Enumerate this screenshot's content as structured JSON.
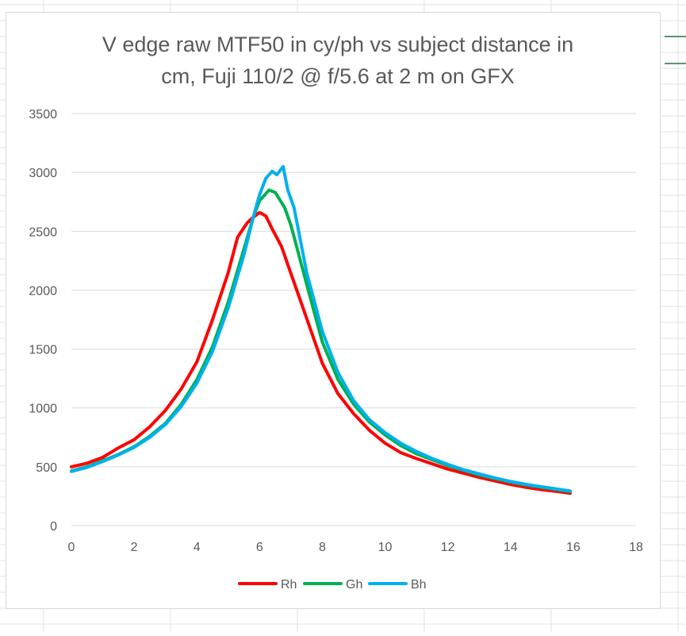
{
  "chart_data": {
    "type": "line",
    "title_lines": [
      "V edge raw MTF50 in cy/ph vs subject distance in",
      "cm, Fuji 110/2 @ f/5.6 at 2 m on GFX"
    ],
    "xlim": [
      0,
      18
    ],
    "ylim": [
      0,
      3500
    ],
    "x_ticks": [
      0,
      2,
      4,
      6,
      8,
      10,
      12,
      14,
      16,
      18
    ],
    "y_ticks": [
      0,
      500,
      1000,
      1500,
      2000,
      2500,
      3000,
      3500
    ],
    "grid": "horizontal",
    "legend_position": "bottom",
    "series": [
      {
        "name": "Rh",
        "color": "#ff0000",
        "points": [
          [
            0,
            500
          ],
          [
            0.5,
            530
          ],
          [
            1,
            580
          ],
          [
            1.5,
            660
          ],
          [
            2,
            730
          ],
          [
            2.5,
            840
          ],
          [
            3,
            980
          ],
          [
            3.5,
            1160
          ],
          [
            4,
            1390
          ],
          [
            4.5,
            1750
          ],
          [
            5,
            2150
          ],
          [
            5.3,
            2450
          ],
          [
            5.6,
            2570
          ],
          [
            5.8,
            2620
          ],
          [
            6.0,
            2660
          ],
          [
            6.2,
            2630
          ],
          [
            6.4,
            2520
          ],
          [
            6.7,
            2370
          ],
          [
            7,
            2140
          ],
          [
            7.5,
            1760
          ],
          [
            8,
            1380
          ],
          [
            8.5,
            1120
          ],
          [
            9,
            950
          ],
          [
            9.5,
            810
          ],
          [
            10,
            700
          ],
          [
            10.5,
            620
          ],
          [
            11,
            570
          ],
          [
            11.5,
            525
          ],
          [
            12,
            480
          ],
          [
            12.5,
            445
          ],
          [
            13,
            410
          ],
          [
            13.5,
            380
          ],
          [
            14,
            350
          ],
          [
            14.5,
            325
          ],
          [
            15,
            305
          ],
          [
            15.5,
            290
          ],
          [
            15.9,
            275
          ]
        ]
      },
      {
        "name": "Gh",
        "color": "#00b050",
        "points": [
          [
            0,
            465
          ],
          [
            0.5,
            500
          ],
          [
            1,
            550
          ],
          [
            1.5,
            605
          ],
          [
            2,
            670
          ],
          [
            2.5,
            760
          ],
          [
            3,
            870
          ],
          [
            3.5,
            1030
          ],
          [
            4,
            1240
          ],
          [
            4.5,
            1520
          ],
          [
            5,
            1900
          ],
          [
            5.5,
            2350
          ],
          [
            5.8,
            2620
          ],
          [
            6.0,
            2760
          ],
          [
            6.3,
            2850
          ],
          [
            6.5,
            2830
          ],
          [
            6.8,
            2700
          ],
          [
            7,
            2550
          ],
          [
            7.5,
            2050
          ],
          [
            8,
            1560
          ],
          [
            8.5,
            1240
          ],
          [
            9,
            1030
          ],
          [
            9.5,
            880
          ],
          [
            10,
            770
          ],
          [
            10.5,
            680
          ],
          [
            11,
            610
          ],
          [
            11.5,
            560
          ],
          [
            12,
            510
          ],
          [
            12.5,
            470
          ],
          [
            13,
            430
          ],
          [
            13.5,
            400
          ],
          [
            14,
            370
          ],
          [
            14.5,
            345
          ],
          [
            15,
            325
          ],
          [
            15.5,
            305
          ],
          [
            15.9,
            290
          ]
        ]
      },
      {
        "name": "Bh",
        "color": "#00b0f0",
        "points": [
          [
            0,
            460
          ],
          [
            0.5,
            495
          ],
          [
            1,
            545
          ],
          [
            1.5,
            600
          ],
          [
            2,
            665
          ],
          [
            2.5,
            750
          ],
          [
            3,
            860
          ],
          [
            3.5,
            1010
          ],
          [
            4,
            1210
          ],
          [
            4.5,
            1480
          ],
          [
            5,
            1850
          ],
          [
            5.5,
            2300
          ],
          [
            5.8,
            2620
          ],
          [
            6.0,
            2810
          ],
          [
            6.2,
            2950
          ],
          [
            6.4,
            3010
          ],
          [
            6.55,
            2980
          ],
          [
            6.75,
            3050
          ],
          [
            6.9,
            2850
          ],
          [
            7.1,
            2700
          ],
          [
            7.5,
            2150
          ],
          [
            8,
            1650
          ],
          [
            8.5,
            1300
          ],
          [
            9,
            1060
          ],
          [
            9.5,
            900
          ],
          [
            10,
            790
          ],
          [
            10.5,
            700
          ],
          [
            11,
            630
          ],
          [
            11.5,
            570
          ],
          [
            12,
            520
          ],
          [
            12.5,
            475
          ],
          [
            13,
            440
          ],
          [
            13.5,
            405
          ],
          [
            14,
            375
          ],
          [
            14.5,
            350
          ],
          [
            15,
            330
          ],
          [
            15.5,
            310
          ],
          [
            15.9,
            295
          ]
        ]
      }
    ]
  }
}
